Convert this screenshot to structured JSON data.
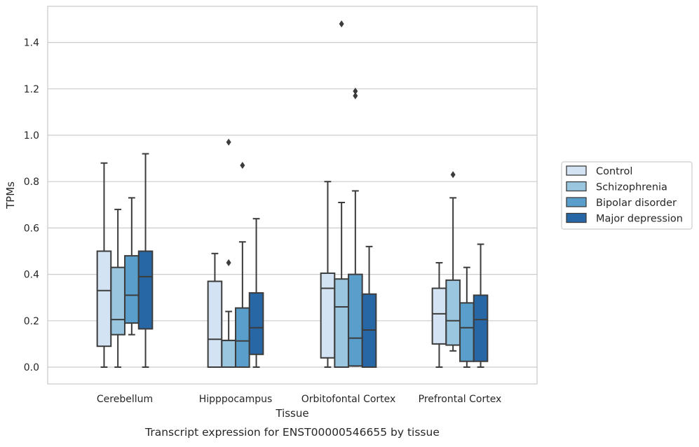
{
  "caption": "Transcript expression for ENST00000546655 by tissue",
  "chart_data": {
    "type": "box",
    "xlabel": "Tissue",
    "ylabel": "TPMs",
    "ylim": [
      -0.07,
      1.56
    ],
    "yticks": [
      "0.0",
      "0.2",
      "0.4",
      "0.6",
      "0.8",
      "1.0",
      "1.2",
      "1.4"
    ],
    "grid": "horizontal",
    "legend_position": "outside-right",
    "categories": [
      "Cerebellum",
      "Hipppocampus",
      "Orbitofontal Cortex",
      "Prefrontal Cortex"
    ],
    "series": [
      {
        "name": "Control",
        "color": "#d3e3f3",
        "boxes": [
          {
            "whisker_low": 0.0,
            "q1": 0.09,
            "median": 0.33,
            "q3": 0.5,
            "whisker_high": 0.88,
            "outliers": []
          },
          {
            "whisker_low": 0.0,
            "q1": 0.0,
            "median": 0.12,
            "q3": 0.37,
            "whisker_high": 0.49,
            "outliers": []
          },
          {
            "whisker_low": 0.0,
            "q1": 0.04,
            "median": 0.34,
            "q3": 0.405,
            "whisker_high": 0.8,
            "outliers": []
          },
          {
            "whisker_low": 0.0,
            "q1": 0.1,
            "median": 0.23,
            "q3": 0.34,
            "whisker_high": 0.45,
            "outliers": []
          }
        ]
      },
      {
        "name": "Schizophrenia",
        "color": "#9ac6e0",
        "boxes": [
          {
            "whisker_low": 0.0,
            "q1": 0.14,
            "median": 0.205,
            "q3": 0.43,
            "whisker_high": 0.68,
            "outliers": []
          },
          {
            "whisker_low": 0.0,
            "q1": 0.0,
            "median": 0.115,
            "q3": 0.115,
            "whisker_high": 0.24,
            "outliers": [
              0.45,
              0.97
            ]
          },
          {
            "whisker_low": 0.0,
            "q1": 0.0,
            "median": 0.26,
            "q3": 0.38,
            "whisker_high": 0.71,
            "outliers": [
              1.48
            ]
          },
          {
            "whisker_low": 0.07,
            "q1": 0.095,
            "median": 0.2,
            "q3": 0.375,
            "whisker_high": 0.73,
            "outliers": [
              0.83
            ]
          }
        ]
      },
      {
        "name": "Bipolar disorder",
        "color": "#5a9fcb",
        "boxes": [
          {
            "whisker_low": 0.14,
            "q1": 0.19,
            "median": 0.31,
            "q3": 0.48,
            "whisker_high": 0.73,
            "outliers": []
          },
          {
            "whisker_low": 0.0,
            "q1": 0.0,
            "median": 0.113,
            "q3": 0.255,
            "whisker_high": 0.54,
            "outliers": [
              0.87
            ]
          },
          {
            "whisker_low": 0.005,
            "q1": 0.005,
            "median": 0.125,
            "q3": 0.4,
            "whisker_high": 0.76,
            "outliers": [
              1.17,
              1.19
            ]
          },
          {
            "whisker_low": 0.0,
            "q1": 0.025,
            "median": 0.17,
            "q3": 0.277,
            "whisker_high": 0.43,
            "outliers": []
          }
        ]
      },
      {
        "name": "Major depression",
        "color": "#2867a6",
        "boxes": [
          {
            "whisker_low": 0.0,
            "q1": 0.165,
            "median": 0.39,
            "q3": 0.5,
            "whisker_high": 0.92,
            "outliers": []
          },
          {
            "whisker_low": 0.0,
            "q1": 0.055,
            "median": 0.17,
            "q3": 0.32,
            "whisker_high": 0.64,
            "outliers": []
          },
          {
            "whisker_low": 0.0,
            "q1": 0.0,
            "median": 0.16,
            "q3": 0.315,
            "whisker_high": 0.52,
            "outliers": []
          },
          {
            "whisker_low": 0.0,
            "q1": 0.025,
            "median": 0.205,
            "q3": 0.31,
            "whisker_high": 0.53,
            "outliers": []
          }
        ]
      }
    ]
  }
}
